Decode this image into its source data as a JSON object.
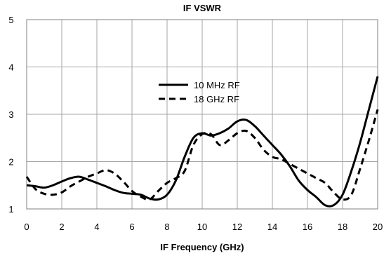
{
  "chart_data": {
    "type": "line",
    "title": "IF VSWR",
    "xlabel": "IF Frequency (GHz)",
    "ylabel": "",
    "xlim": [
      0,
      20
    ],
    "ylim": [
      1,
      5
    ],
    "xticks": [
      0,
      2,
      4,
      6,
      8,
      10,
      12,
      14,
      16,
      18,
      20
    ],
    "yticks": [
      1,
      2,
      3,
      4,
      5
    ],
    "grid": true,
    "legend_position": "center",
    "series": [
      {
        "name": "10 MHz RF",
        "style": "solid",
        "color": "#000000",
        "x": [
          0,
          0.5,
          1,
          1.5,
          2,
          2.5,
          3,
          3.5,
          4,
          4.5,
          5,
          5.5,
          6,
          6.5,
          7,
          7.5,
          8,
          8.5,
          9,
          9.5,
          10,
          10.5,
          11,
          11.5,
          12,
          12.5,
          13,
          13.5,
          14,
          14.5,
          15,
          15.5,
          16,
          16.5,
          17,
          17.5,
          18,
          18.5,
          19,
          19.5,
          20
        ],
        "values": [
          1.5,
          1.48,
          1.45,
          1.5,
          1.58,
          1.65,
          1.68,
          1.62,
          1.55,
          1.48,
          1.4,
          1.34,
          1.32,
          1.3,
          1.22,
          1.2,
          1.3,
          1.6,
          2.1,
          2.5,
          2.6,
          2.55,
          2.6,
          2.7,
          2.85,
          2.88,
          2.75,
          2.55,
          2.35,
          2.15,
          1.9,
          1.6,
          1.4,
          1.25,
          1.08,
          1.08,
          1.3,
          1.8,
          2.4,
          3.1,
          3.8
        ]
      },
      {
        "name": "18 GHz RF",
        "style": "dashed",
        "color": "#000000",
        "x": [
          0,
          0.5,
          1,
          1.5,
          2,
          2.5,
          3,
          3.5,
          4,
          4.5,
          5,
          5.5,
          6,
          6.5,
          7,
          7.5,
          8,
          8.5,
          9,
          9.5,
          10,
          10.5,
          11,
          11.5,
          12,
          12.5,
          13,
          13.5,
          14,
          14.5,
          15,
          15.5,
          16,
          16.5,
          17,
          17.5,
          18,
          18.5,
          19,
          19.5,
          20
        ],
        "values": [
          1.68,
          1.42,
          1.32,
          1.3,
          1.35,
          1.48,
          1.58,
          1.68,
          1.75,
          1.82,
          1.75,
          1.58,
          1.38,
          1.26,
          1.2,
          1.38,
          1.55,
          1.65,
          1.8,
          2.35,
          2.58,
          2.58,
          2.35,
          2.45,
          2.6,
          2.65,
          2.5,
          2.25,
          2.1,
          2.05,
          1.95,
          1.85,
          1.75,
          1.65,
          1.55,
          1.35,
          1.2,
          1.3,
          1.85,
          2.45,
          3.1
        ]
      }
    ]
  }
}
